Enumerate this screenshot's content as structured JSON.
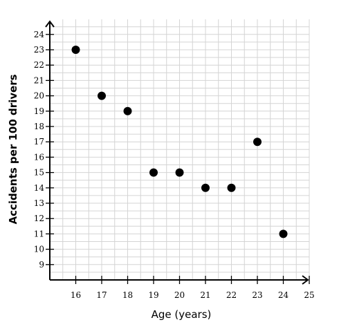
{
  "chart_data": {
    "type": "scatter",
    "title": "",
    "xlabel": "Age (years)",
    "ylabel": "Accidents per 100 drivers",
    "xlim": [
      15,
      25
    ],
    "ylim": [
      8,
      24
    ],
    "x_ticks": [
      16,
      17,
      18,
      19,
      20,
      21,
      22,
      23,
      24,
      25
    ],
    "y_ticks": [
      9,
      10,
      11,
      12,
      13,
      14,
      15,
      16,
      17,
      18,
      19,
      20,
      21,
      22,
      23,
      24
    ],
    "grid": true,
    "points": [
      {
        "x": 16,
        "y": 23
      },
      {
        "x": 17,
        "y": 20
      },
      {
        "x": 18,
        "y": 19
      },
      {
        "x": 19,
        "y": 15
      },
      {
        "x": 20,
        "y": 15
      },
      {
        "x": 21,
        "y": 14
      },
      {
        "x": 22,
        "y": 14
      },
      {
        "x": 23,
        "y": 17
      },
      {
        "x": 24,
        "y": 11
      }
    ],
    "colors": {
      "points": "#000000",
      "grid": "#d4d4d4",
      "axes": "#000000"
    }
  }
}
